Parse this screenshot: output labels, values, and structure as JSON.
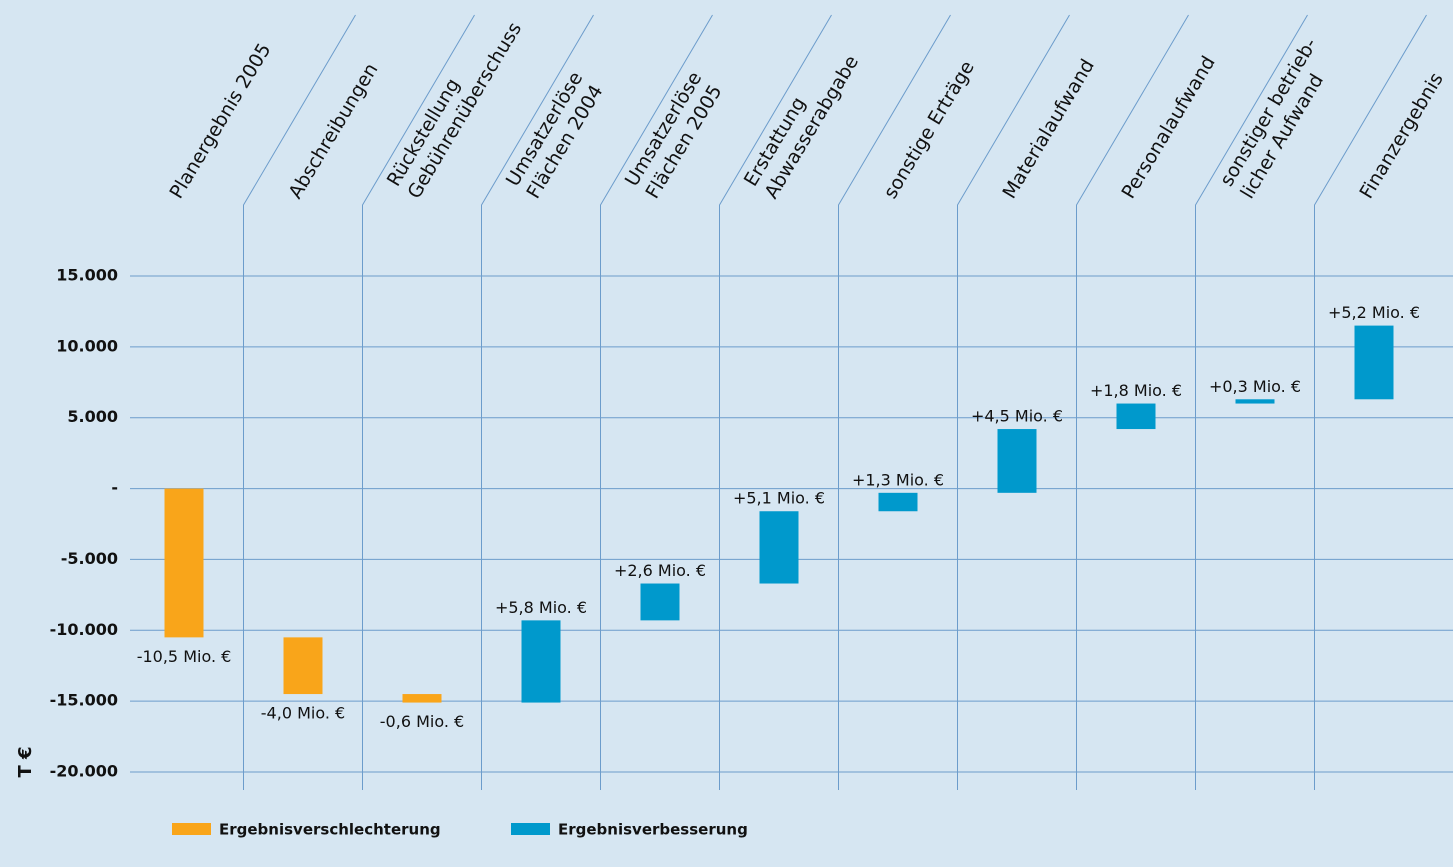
{
  "chart_data": {
    "type": "waterfall",
    "y_label": "T €",
    "categories": [
      [
        "Planergebnis 2005"
      ],
      [
        "Abschreibungen"
      ],
      [
        "Rückstellung",
        "Gebührenüberschuss"
      ],
      [
        "Umsatzerlöse",
        "Flächen 2004"
      ],
      [
        "Umsatzerlöse",
        "Flächen 2005"
      ],
      [
        "Erstattung",
        "Abwasserabgabe"
      ],
      [
        "sonstige Erträge"
      ],
      [
        "Materialaufwand"
      ],
      [
        "Personalaufwand"
      ],
      [
        "sonstiger betrieb-",
        "licher Aufwand"
      ],
      [
        "Finanzergebnis"
      ]
    ],
    "values": [
      -10500,
      -4000,
      -600,
      5800,
      2600,
      5100,
      1300,
      4500,
      1800,
      300,
      5200
    ],
    "value_labels": [
      "-10,5 Mio. €",
      "-4,0 Mio. €",
      "-0,6 Mio. €",
      "+5,8 Mio. €",
      "+2,6 Mio. €",
      "+5,1 Mio. €",
      "+1,3 Mio. €",
      "+4,5 Mio. €",
      "+1,8 Mio. €",
      "+0,3 Mio. €",
      "+5,2 Mio. €"
    ],
    "legend": [
      {
        "name": "Ergebnisverschlechterung",
        "color": "#f9a51a"
      },
      {
        "name": "Ergebnisverbesserung",
        "color": "#0099cc"
      }
    ],
    "ylim": [
      -20000,
      15000
    ],
    "yticks": [
      {
        "value": 15000,
        "label": "15.000"
      },
      {
        "value": 10000,
        "label": "10.000"
      },
      {
        "value": 5000,
        "label": "5.000"
      },
      {
        "value": 0,
        "label": "-"
      },
      {
        "value": -5000,
        "label": "-5.000"
      },
      {
        "value": -10000,
        "label": "-10.000"
      },
      {
        "value": -15000,
        "label": "-15.000"
      },
      {
        "value": -20000,
        "label": "-20.000"
      }
    ],
    "grid": true
  }
}
